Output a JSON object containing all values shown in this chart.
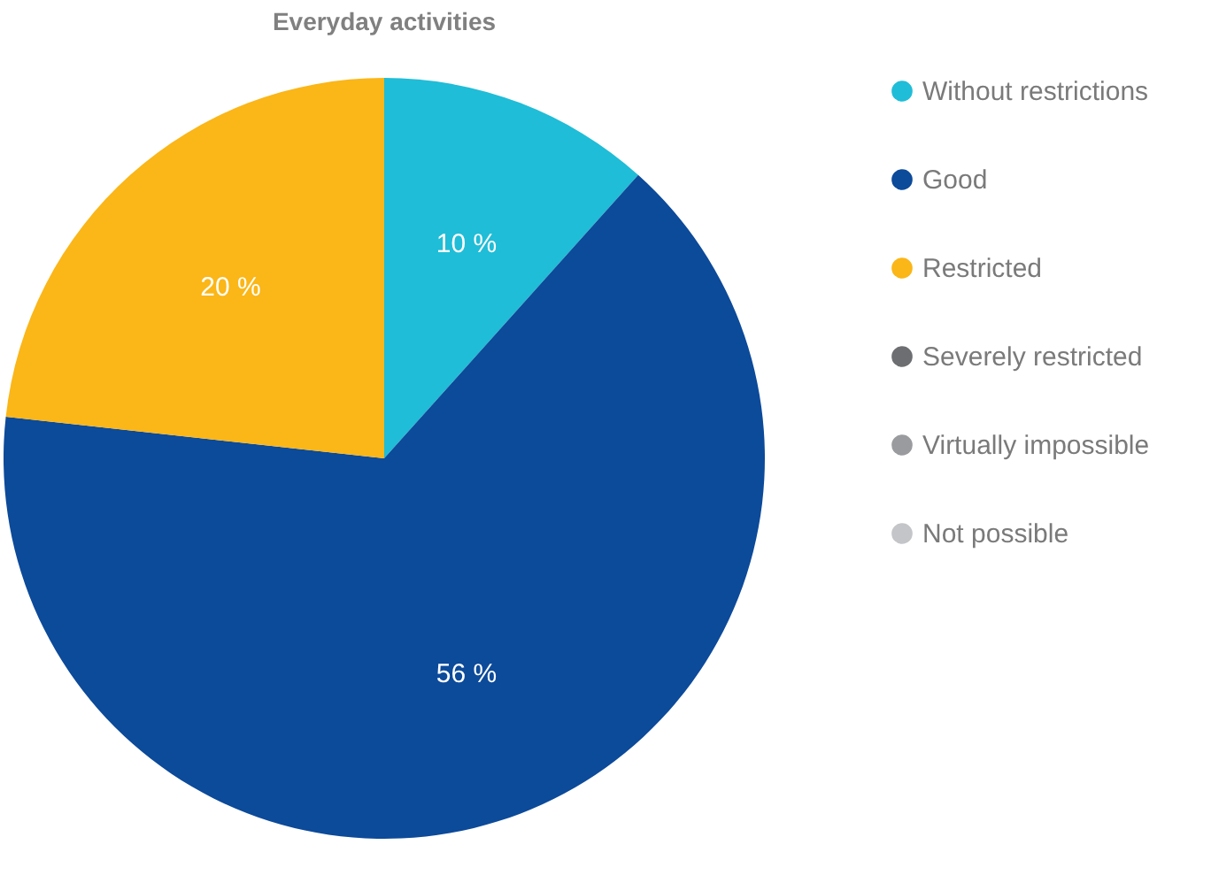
{
  "chart_data": {
    "type": "pie",
    "title": "Everyday activities",
    "categories": [
      "Without restrictions",
      "Good",
      "Restricted",
      "Severely restricted",
      "Virtually impossible",
      "Not possible"
    ],
    "values": [
      10,
      56,
      20,
      0,
      0,
      0
    ],
    "value_labels": [
      "10 %",
      "56 %",
      "20 %",
      null,
      null,
      null
    ],
    "colors": [
      "#1fbdd7",
      "#0c4a9a",
      "#fbb617",
      "#6d6e71",
      "#9a9b9e",
      "#c4c5c8"
    ],
    "legend": "right"
  }
}
